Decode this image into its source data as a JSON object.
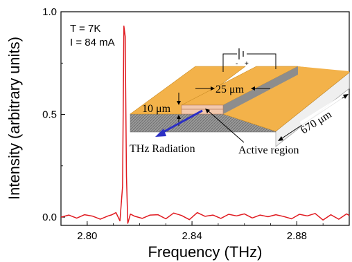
{
  "chart_data": {
    "type": "line",
    "xlabel": "Frequency (THz)",
    "ylabel": "Intensity (arbitrary units)",
    "xlim": [
      2.79,
      2.9
    ],
    "ylim": [
      -0.04,
      1.0
    ],
    "x_ticks": [
      2.8,
      2.84,
      2.88
    ],
    "x_tick_labels": [
      "2.80",
      "2.84",
      "2.88"
    ],
    "y_ticks": [
      0.0,
      0.5,
      1.0
    ],
    "y_tick_labels": [
      "0.0",
      "0.5",
      "1.0"
    ],
    "grid": false,
    "series": [
      {
        "color": "#e0191f",
        "x": [
          2.79,
          2.793,
          2.796,
          2.799,
          2.802,
          2.805,
          2.808,
          2.8095,
          2.811,
          2.8125,
          2.8135,
          2.814,
          2.8145,
          2.815,
          2.8155,
          2.8165,
          2.818,
          2.821,
          2.824,
          2.827,
          2.83,
          2.833,
          2.836,
          2.839,
          2.842,
          2.845,
          2.848,
          2.851,
          2.854,
          2.857,
          2.86,
          2.863,
          2.866,
          2.869,
          2.872,
          2.875,
          2.878,
          2.881,
          2.884,
          2.887,
          2.89,
          2.893,
          2.896,
          2.899,
          2.9
        ],
        "y": [
          0.0,
          0.01,
          -0.005,
          0.012,
          0.005,
          -0.01,
          0.006,
          0.012,
          0.022,
          -0.018,
          0.15,
          0.93,
          0.88,
          0.2,
          -0.03,
          0.015,
          0.005,
          -0.006,
          0.01,
          0.012,
          -0.008,
          0.02,
          0.008,
          -0.012,
          0.022,
          0.004,
          0.01,
          -0.006,
          0.014,
          0.006,
          0.016,
          -0.004,
          0.01,
          0.002,
          0.012,
          0.003,
          -0.008,
          0.014,
          0.006,
          0.018,
          -0.014,
          0.012,
          -0.01,
          0.016,
          0.008
        ]
      }
    ],
    "annotations": {
      "temperature": "T = 7K",
      "current": "I = 84 mA",
      "width_label": "25 μm",
      "height_label": "10 μm",
      "length_label": "670 μm",
      "radiation_label": "THz Radiation",
      "active_label": "Active region"
    }
  }
}
